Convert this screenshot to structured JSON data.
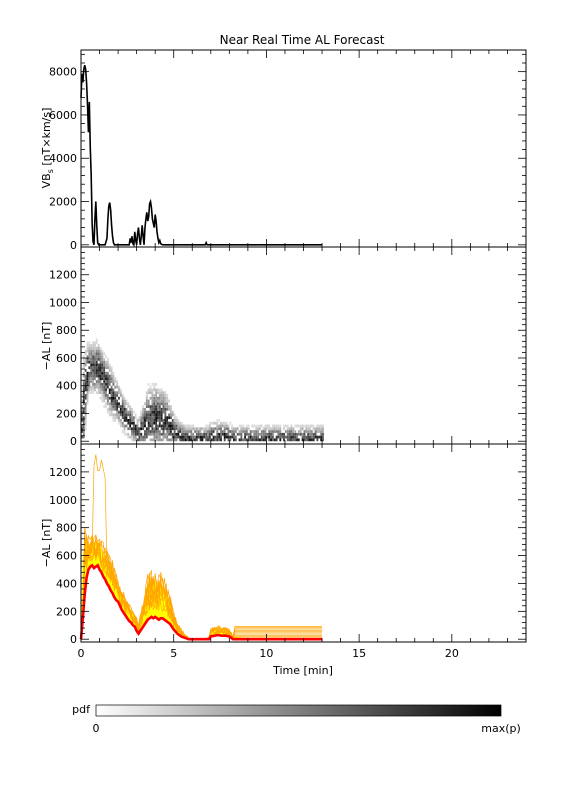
{
  "title": "Near Real Time AL Forecast",
  "chart_data": [
    {
      "type": "line",
      "ylabel_main": "VB",
      "ylabel_sub": "s",
      "ylabel_unit": " [nT×km/s]",
      "xlim": [
        0,
        24
      ],
      "ylim": [
        -100,
        9000
      ],
      "yticks": [
        0,
        2000,
        4000,
        6000,
        8000
      ],
      "series": [
        {
          "x": [
            0,
            0.05,
            0.1,
            0.15,
            0.2,
            0.25,
            0.3,
            0.35,
            0.4,
            0.45,
            0.5,
            0.55,
            0.6,
            0.65,
            0.7,
            0.75,
            0.8,
            0.85,
            0.9,
            0.95,
            1.0,
            1.05,
            1.1,
            1.15,
            1.2,
            1.3,
            1.4,
            1.45,
            1.5,
            1.55,
            1.6,
            1.65,
            1.7,
            1.75,
            1.8,
            1.9,
            2.0,
            2.2,
            2.4,
            2.5,
            2.6,
            2.65,
            2.7,
            2.75,
            2.8,
            2.85,
            2.9,
            2.95,
            3.0,
            3.05,
            3.1,
            3.15,
            3.2,
            3.25,
            3.3,
            3.35,
            3.4,
            3.45,
            3.5,
            3.55,
            3.6,
            3.65,
            3.7,
            3.75,
            3.8,
            3.85,
            3.9,
            3.95,
            4.0,
            4.05,
            4.1,
            4.15,
            4.2,
            4.25,
            4.3,
            4.4,
            4.5,
            5.0,
            6.0,
            6.7,
            6.75,
            6.8,
            7.0,
            8.0,
            10.0,
            13.0
          ],
          "y": [
            6800,
            7900,
            7500,
            8100,
            8300,
            8100,
            7500,
            6500,
            5200,
            6600,
            4500,
            3200,
            1000,
            150,
            0,
            1200,
            2000,
            900,
            100,
            0,
            0,
            0,
            0,
            0,
            0,
            0,
            300,
            1200,
            1800,
            1950,
            1600,
            900,
            400,
            100,
            0,
            0,
            0,
            0,
            0,
            0,
            0,
            300,
            100,
            400,
            50,
            0,
            600,
            200,
            0,
            500,
            800,
            300,
            0,
            400,
            900,
            400,
            0,
            800,
            1200,
            1500,
            1100,
            1300,
            1900,
            2000,
            1700,
            1200,
            1000,
            800,
            1400,
            1100,
            600,
            300,
            100,
            200,
            50,
            0,
            0,
            0,
            0,
            0,
            100,
            0,
            0,
            0,
            0,
            0
          ]
        }
      ]
    },
    {
      "type": "heatmap",
      "ylabel": "−AL [nT]",
      "xlim": [
        0,
        24
      ],
      "ylim": [
        -20,
        1400
      ],
      "yticks": [
        0,
        200,
        400,
        600,
        800,
        1000,
        1200
      ],
      "colorbar": {
        "label": "pdf",
        "min_label": "0",
        "max_label": "max(p)"
      }
    },
    {
      "type": "area",
      "ylabel": "−AL [nT]",
      "xlabel": "Time [min]",
      "xlim": [
        0,
        24
      ],
      "ylim": [
        -20,
        1400
      ],
      "yticks": [
        0,
        200,
        400,
        600,
        800,
        1000,
        1200
      ],
      "xticks": [
        0,
        5,
        10,
        15,
        20
      ],
      "colors": {
        "median": "#ff0000",
        "band": "#ffff00",
        "ensemble": "#ffa500"
      },
      "series": [
        {
          "x": [
            0,
            0.1,
            0.2,
            0.3,
            0.4,
            0.5,
            0.6,
            0.7,
            0.8,
            0.9,
            1.0,
            1.1,
            1.2,
            1.3,
            1.4,
            1.5,
            1.6,
            1.7,
            1.8,
            1.9,
            2.0,
            2.1,
            2.2,
            2.3,
            2.4,
            2.5,
            2.6,
            2.7,
            2.8,
            2.9,
            3.0,
            3.1,
            3.2,
            3.3,
            3.4,
            3.5,
            3.6,
            3.7,
            3.8,
            3.9,
            4.0,
            4.1,
            4.2,
            4.3,
            4.4,
            4.5,
            4.6,
            4.7,
            4.8,
            4.9,
            5.0,
            5.2,
            5.4,
            5.6,
            5.8,
            6.0,
            6.5,
            6.9,
            7.0,
            7.2,
            7.4,
            7.6,
            7.8,
            8.0,
            8.1,
            8.2,
            9.0,
            13.0
          ],
          "y": [
            0,
            150,
            320,
            440,
            500,
            520,
            530,
            510,
            520,
            530,
            500,
            480,
            450,
            430,
            400,
            380,
            350,
            330,
            300,
            280,
            270,
            240,
            210,
            190,
            170,
            150,
            130,
            120,
            100,
            90,
            60,
            40,
            60,
            80,
            100,
            120,
            140,
            150,
            160,
            150,
            160,
            150,
            140,
            150,
            150,
            140,
            130,
            120,
            110,
            90,
            70,
            40,
            20,
            10,
            0,
            0,
            0,
            0,
            20,
            25,
            30,
            25,
            25,
            20,
            10,
            0,
            0,
            0
          ]
        },
        {
          "x": [
            0,
            0.1,
            0.2,
            0.3,
            0.4,
            0.5,
            0.6,
            0.7,
            0.8,
            0.9,
            1.0,
            1.1,
            1.2,
            1.3,
            1.4,
            1.5,
            1.6,
            1.7,
            1.8,
            1.9,
            2.0,
            2.1,
            2.2,
            2.3,
            2.4,
            2.5,
            2.6,
            2.7,
            2.8,
            2.9,
            3.0,
            3.1,
            3.2,
            3.3,
            3.4,
            3.5,
            3.6,
            3.7,
            3.8,
            3.9,
            4.0,
            4.1,
            4.2,
            4.3,
            4.4,
            4.5,
            4.6,
            4.7,
            4.8,
            4.9,
            5.0,
            5.2,
            5.4,
            5.6,
            5.8,
            6.0,
            6.5,
            6.9,
            7.0,
            7.2,
            7.4,
            7.6,
            7.8,
            8.0,
            8.1,
            8.2,
            9.0,
            13.0
          ],
          "y": [
            80,
            600,
            700,
            700,
            690,
            680,
            700,
            680,
            700,
            700,
            680,
            650,
            630,
            600,
            580,
            550,
            530,
            500,
            450,
            420,
            380,
            350,
            320,
            300,
            260,
            240,
            220,
            200,
            180,
            160,
            130,
            100,
            150,
            200,
            260,
            320,
            380,
            400,
            420,
            400,
            420,
            400,
            380,
            400,
            380,
            360,
            330,
            300,
            260,
            220,
            160,
            100,
            60,
            30,
            10,
            0,
            0,
            10,
            60,
            70,
            80,
            70,
            70,
            60,
            40,
            20,
            10,
            10
          ]
        }
      ]
    }
  ]
}
